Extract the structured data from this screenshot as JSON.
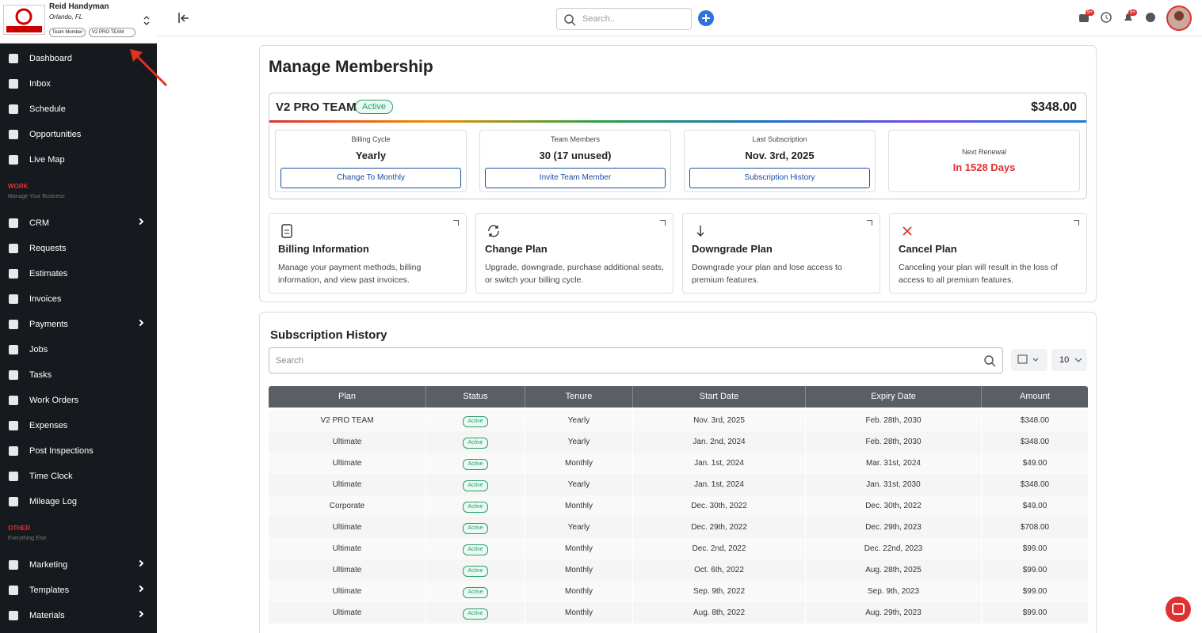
{
  "sidebar": {
    "company": "Reid Handyman",
    "location": "Orlando, FL",
    "badges": [
      "Team Member",
      "V2 PRO TEAM"
    ],
    "nav_main": [
      {
        "label": "Dashboard"
      },
      {
        "label": "Inbox"
      },
      {
        "label": "Schedule"
      },
      {
        "label": "Opportunities"
      },
      {
        "label": "Live Map"
      }
    ],
    "sections": [
      {
        "title": "WORK",
        "subtitle": "Manage Your Business",
        "items": [
          {
            "label": "CRM",
            "has_submenu": true
          },
          {
            "label": "Requests"
          },
          {
            "label": "Estimates"
          },
          {
            "label": "Invoices"
          },
          {
            "label": "Payments",
            "has_submenu": true
          },
          {
            "label": "Jobs"
          },
          {
            "label": "Tasks"
          },
          {
            "label": "Work Orders"
          },
          {
            "label": "Expenses"
          },
          {
            "label": "Post Inspections"
          },
          {
            "label": "Time Clock"
          },
          {
            "label": "Mileage Log"
          }
        ]
      },
      {
        "title": "OTHER",
        "subtitle": "Everything Else",
        "items": [
          {
            "label": "Marketing",
            "has_submenu": true
          },
          {
            "label": "Templates",
            "has_submenu": true
          },
          {
            "label": "Materials",
            "has_submenu": true
          }
        ]
      }
    ]
  },
  "topbar": {
    "search_placeholder": "Search..",
    "badges": [
      "9+",
      "9+"
    ]
  },
  "membership": {
    "title": "Manage Membership",
    "plan": "V2 PRO TEAM",
    "status": "Active",
    "price": "$348.00",
    "stats": [
      {
        "label": "Billing Cycle",
        "value": "Yearly",
        "button": "Change To Monthly"
      },
      {
        "label": "Team Members",
        "value": "30 (17 unused)",
        "button": "Invite Team Member"
      },
      {
        "label": "Last Subscription",
        "value": "Nov. 3rd, 2025",
        "button": "Subscription History"
      },
      {
        "label": "Next Renewal",
        "value": "In 1528 Days"
      }
    ],
    "actions": [
      {
        "title": "Billing Information",
        "description": "Manage your payment methods, billing information, and view past invoices."
      },
      {
        "title": "Change Plan",
        "description": "Upgrade, downgrade, purchase additional seats, or switch your billing cycle."
      },
      {
        "title": "Downgrade Plan",
        "description": "Downgrade your plan and lose access to premium features."
      },
      {
        "title": "Cancel Plan",
        "description": "Canceling your plan will result in the loss of access to all premium features."
      }
    ]
  },
  "history": {
    "title": "Subscription History",
    "search_placeholder": "Search",
    "page_size": "10",
    "columns": [
      "Plan",
      "Status",
      "Tenure",
      "Start Date",
      "Expiry Date",
      "Amount"
    ],
    "rows": [
      [
        "V2 PRO TEAM",
        "Active",
        "Yearly",
        "Nov. 3rd, 2025",
        "Feb. 28th, 2030",
        "$348.00"
      ],
      [
        "Ultimate",
        "Active",
        "Yearly",
        "Jan. 2nd, 2024",
        "Feb. 28th, 2030",
        "$348.00"
      ],
      [
        "Ultimate",
        "Active",
        "Monthly",
        "Jan. 1st, 2024",
        "Mar. 31st, 2024",
        "$49.00"
      ],
      [
        "Ultimate",
        "Active",
        "Yearly",
        "Jan. 1st, 2024",
        "Jan. 31st, 2030",
        "$348.00"
      ],
      [
        "Corporate",
        "Active",
        "Monthly",
        "Dec. 30th, 2022",
        "Dec. 30th, 2022",
        "$49.00"
      ],
      [
        "Ultimate",
        "Active",
        "Yearly",
        "Dec. 29th, 2022",
        "Dec. 29th, 2023",
        "$708.00"
      ],
      [
        "Ultimate",
        "Active",
        "Monthly",
        "Dec. 2nd, 2022",
        "Dec. 22nd, 2023",
        "$99.00"
      ],
      [
        "Ultimate",
        "Active",
        "Monthly",
        "Oct. 6th, 2022",
        "Aug. 28th, 2025",
        "$99.00"
      ],
      [
        "Ultimate",
        "Active",
        "Monthly",
        "Sep. 9th, 2022",
        "Sep. 9th, 2023",
        "$99.00"
      ],
      [
        "Ultimate",
        "Active",
        "Monthly",
        "Aug. 8th, 2022",
        "Aug. 29th, 2023",
        "$99.00"
      ]
    ]
  }
}
